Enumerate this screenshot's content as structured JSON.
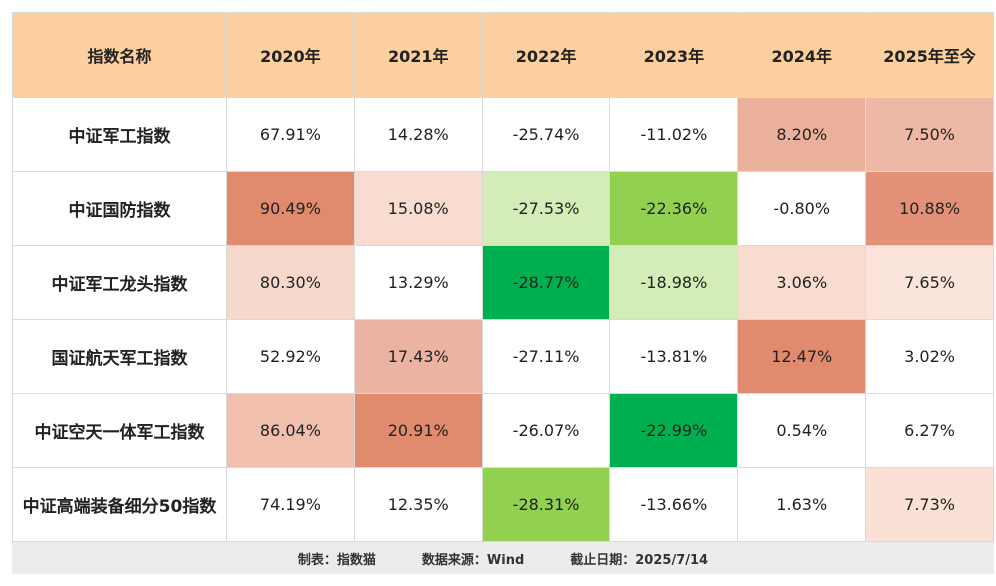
{
  "table": {
    "header": [
      "指数名称",
      "2020年",
      "2021年",
      "2022年",
      "2023年",
      "2024年",
      "2025年至今"
    ],
    "rows": [
      [
        "中证军工指数",
        "67.91%",
        "14.28%",
        "-25.74%",
        "-11.02%",
        "8.20%",
        "7.50%"
      ],
      [
        "中证国防指数",
        "90.49%",
        "15.08%",
        "-27.53%",
        "-22.36%",
        "-0.80%",
        "10.88%"
      ],
      [
        "中证军工龙头指数",
        "80.30%",
        "13.29%",
        "-28.77%",
        "-18.98%",
        "3.06%",
        "7.65%"
      ],
      [
        "国证航天军工指数",
        "52.92%",
        "17.43%",
        "-27.11%",
        "-13.81%",
        "12.47%",
        "3.02%"
      ],
      [
        "中证空天一体军工指数",
        "86.04%",
        "20.91%",
        "-26.07%",
        "-22.99%",
        "0.54%",
        "6.27%"
      ],
      [
        "中证高端装备细分50指数",
        "74.19%",
        "12.35%",
        "-28.31%",
        "-13.66%",
        "1.63%",
        "7.73%"
      ]
    ],
    "cell_colors": [
      [
        "#ffffff",
        "#ffffff",
        "#ffffff",
        "#ffffff",
        "#ffffff",
        "#ebb09c",
        "#eeb8a6"
      ],
      [
        "#ffffff",
        "#e08a6e",
        "#f8dcd0",
        "#d3ecb8",
        "#92d050",
        "#ffffff",
        "#e29077"
      ],
      [
        "#ffffff",
        "#f7d8cc",
        "#ffffff",
        "#00b050",
        "#d3ecb8",
        "#f8dcd0",
        "#fbe4dc"
      ],
      [
        "#ffffff",
        "#ffffff",
        "#ecb3a2",
        "#ffffff",
        "#ffffff",
        "#e08a6e",
        "#ffffff"
      ],
      [
        "#ffffff",
        "#f0bfae",
        "#e08a6e",
        "#ffffff",
        "#00b050",
        "#ffffff",
        "#ffffff"
      ],
      [
        "#ffffff",
        "#ffffff",
        "#ffffff",
        "#92d050",
        "#ffffff",
        "#ffffff",
        "#fbe0d6"
      ]
    ],
    "header_color": "#fccf9e"
  },
  "footer": [
    "制表：指数猫",
    "数据来源：Wind",
    "截止日期：2025/7/14"
  ]
}
